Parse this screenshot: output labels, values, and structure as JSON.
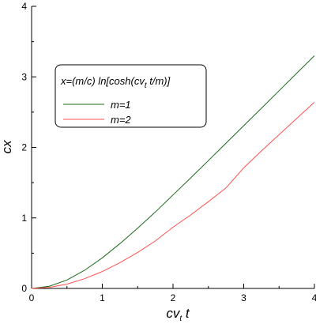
{
  "chart_data": {
    "type": "line",
    "xlabel_main": "cv",
    "xlabel_sub": "t",
    "xlabel_tail": " t",
    "ylabel": "cx",
    "xlim": [
      0,
      4
    ],
    "ylim": [
      0,
      4
    ],
    "x_ticks": [
      "0",
      "1",
      "2",
      "3",
      "4"
    ],
    "y_ticks": [
      "0",
      "1",
      "2",
      "3",
      "4"
    ],
    "grid": false,
    "legend_position": "upper-left",
    "legend_title": {
      "pre": "x=(m/c) ln[cosh(cv",
      "sub": "t",
      "post": " t/m)]"
    },
    "series": [
      {
        "name": "m=1",
        "color": "#1a6b1a",
        "x": [
          0,
          0.25,
          0.5,
          0.75,
          1.0,
          1.25,
          1.5,
          1.75,
          2.0,
          2.25,
          2.5,
          2.75,
          3.0,
          3.25,
          3.5,
          3.75,
          4.0
        ],
        "y": [
          0,
          0.031,
          0.12,
          0.258,
          0.434,
          0.636,
          0.855,
          1.084,
          1.325,
          1.568,
          1.813,
          2.06,
          2.307,
          2.555,
          2.803,
          3.052,
          3.3
        ]
      },
      {
        "name": "m=2",
        "color": "#ff5050",
        "x": [
          0,
          0.25,
          0.5,
          0.75,
          1.0,
          1.25,
          1.5,
          1.75,
          2.0,
          2.25,
          2.5,
          2.75,
          3.0,
          3.25,
          3.5,
          3.75,
          4.0
        ],
        "y": [
          0,
          0.016,
          0.062,
          0.138,
          0.24,
          0.366,
          0.511,
          0.673,
          0.868,
          1.042,
          1.23,
          1.425,
          1.71,
          1.95,
          2.18,
          2.41,
          2.64
        ]
      }
    ]
  }
}
